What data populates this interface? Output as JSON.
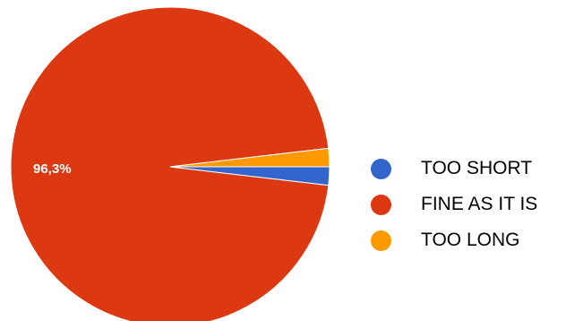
{
  "chart_data": {
    "type": "pie",
    "categories": [
      "TOO SHORT",
      "FINE AS IT IS",
      "TOO LONG"
    ],
    "values": [
      1.85,
      96.3,
      1.85
    ],
    "colors": [
      "#3366cc",
      "#dc3912",
      "#ff9900"
    ],
    "data_labels": [
      "",
      "96,3%",
      ""
    ],
    "legend_position": "right"
  }
}
